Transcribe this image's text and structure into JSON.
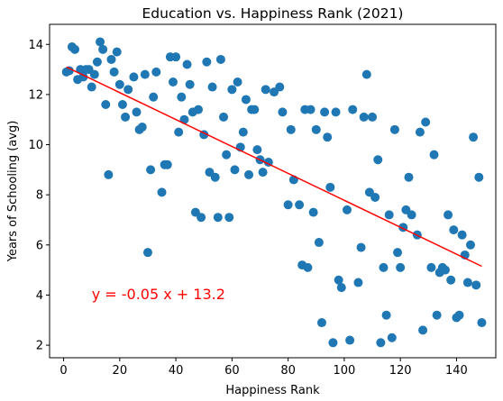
{
  "chart_data": {
    "type": "scatter",
    "title": "Education vs. Happiness Rank (2021)",
    "xlabel": "Happiness Rank",
    "ylabel": "Years of Schooling (avg)",
    "xlim": [
      -5,
      154
    ],
    "ylim": [
      1.5,
      14.8
    ],
    "xticks": [
      0,
      20,
      40,
      60,
      80,
      100,
      120,
      140
    ],
    "yticks": [
      2,
      4,
      6,
      8,
      10,
      12,
      14
    ],
    "grid": false,
    "point_color": "#1f77b4",
    "line_color": "#ff0000",
    "annotation": {
      "text": "y = -0.05 x + 13.2",
      "x": 10,
      "y": 4.05,
      "color": "#ff0000"
    },
    "regression": {
      "slope": -0.0537,
      "intercept": 13.15,
      "x_range": [
        1,
        149
      ]
    },
    "points": [
      [
        1,
        12.9
      ],
      [
        2,
        12.95
      ],
      [
        3,
        13.9
      ],
      [
        4,
        13.8
      ],
      [
        5,
        12.6
      ],
      [
        6,
        13.0
      ],
      [
        7,
        12.7
      ],
      [
        8,
        13.0
      ],
      [
        9,
        13.0
      ],
      [
        10,
        12.3
      ],
      [
        11,
        12.8
      ],
      [
        12,
        13.3
      ],
      [
        13,
        14.1
      ],
      [
        14,
        13.8
      ],
      [
        15,
        11.6
      ],
      [
        16,
        8.8
      ],
      [
        17,
        13.4
      ],
      [
        18,
        12.9
      ],
      [
        19,
        13.7
      ],
      [
        20,
        12.4
      ],
      [
        21,
        11.6
      ],
      [
        22,
        11.1
      ],
      [
        23,
        12.2
      ],
      [
        25,
        12.7
      ],
      [
        26,
        11.3
      ],
      [
        27,
        10.6
      ],
      [
        28,
        10.7
      ],
      [
        29,
        12.8
      ],
      [
        30,
        5.7
      ],
      [
        31,
        9.0
      ],
      [
        32,
        11.9
      ],
      [
        33,
        12.9
      ],
      [
        35,
        8.1
      ],
      [
        36,
        9.2
      ],
      [
        37,
        9.2
      ],
      [
        38,
        13.5
      ],
      [
        39,
        12.5
      ],
      [
        40,
        13.5
      ],
      [
        41,
        10.5
      ],
      [
        42,
        11.9
      ],
      [
        43,
        11.0
      ],
      [
        44,
        13.2
      ],
      [
        45,
        12.4
      ],
      [
        46,
        11.3
      ],
      [
        47,
        7.3
      ],
      [
        48,
        11.4
      ],
      [
        49,
        7.1
      ],
      [
        50,
        10.4
      ],
      [
        51,
        13.3
      ],
      [
        52,
        8.9
      ],
      [
        53,
        12.3
      ],
      [
        54,
        8.7
      ],
      [
        55,
        7.1
      ],
      [
        56,
        13.4
      ],
      [
        57,
        11.1
      ],
      [
        58,
        9.6
      ],
      [
        59,
        7.1
      ],
      [
        60,
        12.2
      ],
      [
        61,
        9.0
      ],
      [
        62,
        12.5
      ],
      [
        63,
        9.9
      ],
      [
        64,
        10.5
      ],
      [
        65,
        11.8
      ],
      [
        66,
        8.8
      ],
      [
        67,
        11.4
      ],
      [
        68,
        11.4
      ],
      [
        69,
        9.8
      ],
      [
        70,
        9.4
      ],
      [
        71,
        8.9
      ],
      [
        72,
        12.2
      ],
      [
        73,
        9.3
      ],
      [
        75,
        12.1
      ],
      [
        77,
        12.3
      ],
      [
        78,
        11.3
      ],
      [
        80,
        7.6
      ],
      [
        81,
        10.6
      ],
      [
        82,
        8.6
      ],
      [
        84,
        7.6
      ],
      [
        85,
        5.2
      ],
      [
        86,
        11.4
      ],
      [
        87,
        5.1
      ],
      [
        88,
        11.4
      ],
      [
        89,
        7.3
      ],
      [
        90,
        10.6
      ],
      [
        91,
        6.1
      ],
      [
        92,
        2.9
      ],
      [
        93,
        11.3
      ],
      [
        94,
        10.3
      ],
      [
        95,
        8.3
      ],
      [
        96,
        2.1
      ],
      [
        97,
        11.3
      ],
      [
        98,
        4.6
      ],
      [
        99,
        4.3
      ],
      [
        101,
        7.4
      ],
      [
        102,
        2.2
      ],
      [
        103,
        11.4
      ],
      [
        105,
        4.5
      ],
      [
        106,
        5.9
      ],
      [
        107,
        11.1
      ],
      [
        108,
        12.8
      ],
      [
        109,
        8.1
      ],
      [
        110,
        11.1
      ],
      [
        111,
        7.9
      ],
      [
        112,
        9.4
      ],
      [
        113,
        2.1
      ],
      [
        114,
        5.1
      ],
      [
        115,
        3.2
      ],
      [
        116,
        7.2
      ],
      [
        117,
        2.3
      ],
      [
        118,
        10.6
      ],
      [
        119,
        5.7
      ],
      [
        120,
        5.1
      ],
      [
        121,
        6.7
      ],
      [
        122,
        7.4
      ],
      [
        123,
        8.7
      ],
      [
        124,
        7.2
      ],
      [
        126,
        6.4
      ],
      [
        127,
        10.5
      ],
      [
        128,
        2.6
      ],
      [
        129,
        10.9
      ],
      [
        131,
        5.1
      ],
      [
        132,
        9.6
      ],
      [
        133,
        3.2
      ],
      [
        134,
        4.9
      ],
      [
        135,
        5.1
      ],
      [
        136,
        5.0
      ],
      [
        137,
        7.2
      ],
      [
        138,
        4.6
      ],
      [
        139,
        6.6
      ],
      [
        140,
        3.1
      ],
      [
        141,
        3.2
      ],
      [
        142,
        6.4
      ],
      [
        143,
        5.6
      ],
      [
        144,
        4.5
      ],
      [
        145,
        6.0
      ],
      [
        146,
        10.3
      ],
      [
        147,
        4.4
      ],
      [
        148,
        8.7
      ],
      [
        149,
        2.9
      ]
    ]
  }
}
